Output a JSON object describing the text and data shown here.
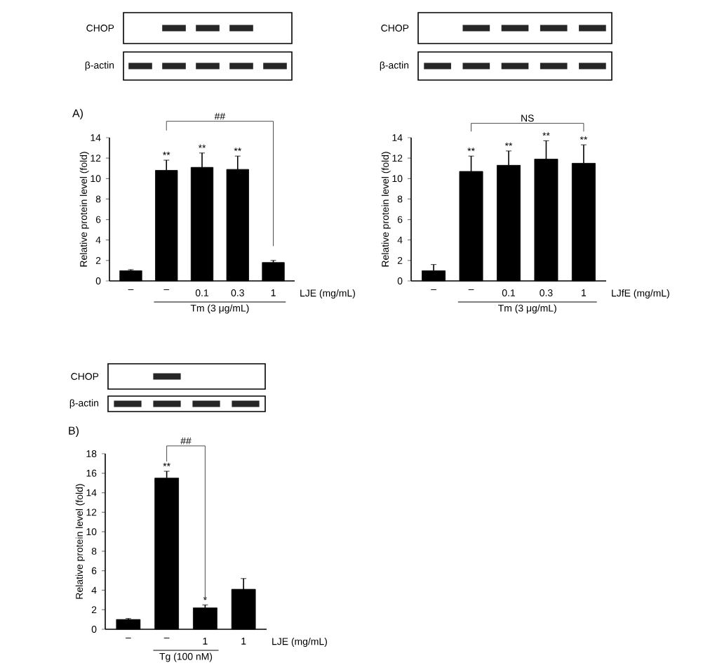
{
  "chart_data": [
    {
      "type": "bar",
      "title": "A)",
      "categories": [
        "–",
        "–",
        "0.1",
        "0.3",
        "1"
      ],
      "values": [
        1.0,
        10.8,
        11.1,
        10.9,
        1.8
      ],
      "errors": [
        0.1,
        1.0,
        1.4,
        1.3,
        0.2
      ],
      "value_labels": [
        null,
        "**",
        "**",
        "**",
        null
      ],
      "color": "#000000",
      "xlabel": "LJE (mg/mL)",
      "ylabel": "Relative protein level (fold)",
      "ylim": [
        0,
        14
      ],
      "yticks": [
        0,
        2,
        4,
        6,
        8,
        10,
        12,
        14
      ],
      "annotations": [
        "CHOP",
        "β-actin",
        "Tm (3 μg/mL)",
        "##"
      ]
    },
    {
      "type": "bar",
      "categories": [
        "–",
        "–",
        "0.1",
        "0.3",
        "1"
      ],
      "values": [
        1.0,
        10.7,
        11.3,
        11.9,
        11.5
      ],
      "errors": [
        0.6,
        1.5,
        1.4,
        1.8,
        1.8
      ],
      "value_labels": [
        null,
        "**",
        "**",
        "**",
        "**"
      ],
      "color": "#000000",
      "xlabel": "LJfE (mg/mL)",
      "ylabel": "Relative protein level (fold)",
      "ylim": [
        0,
        14
      ],
      "yticks": [
        0,
        2,
        4,
        6,
        8,
        10,
        12,
        14
      ],
      "annotations": [
        "CHOP",
        "β-actin",
        "Tm (3 μg/mL)",
        "NS"
      ]
    },
    {
      "type": "bar",
      "title": "B)",
      "categories": [
        "–",
        "–",
        "1",
        "1"
      ],
      "values": [
        1.0,
        15.5,
        2.2,
        4.1
      ],
      "errors": [
        0.1,
        0.7,
        0.3,
        1.1
      ],
      "value_labels": [
        null,
        "**",
        "*",
        null
      ],
      "color": "#000000",
      "xlabel": "LJE (mg/mL)",
      "ylabel": "Relative protein level (fold)",
      "ylim": [
        0,
        18
      ],
      "yticks": [
        0,
        2,
        4,
        6,
        8,
        10,
        12,
        14,
        16,
        18
      ],
      "annotations": [
        "CHOP",
        "β-actin",
        "Tg (100 nM)",
        "##"
      ]
    }
  ]
}
